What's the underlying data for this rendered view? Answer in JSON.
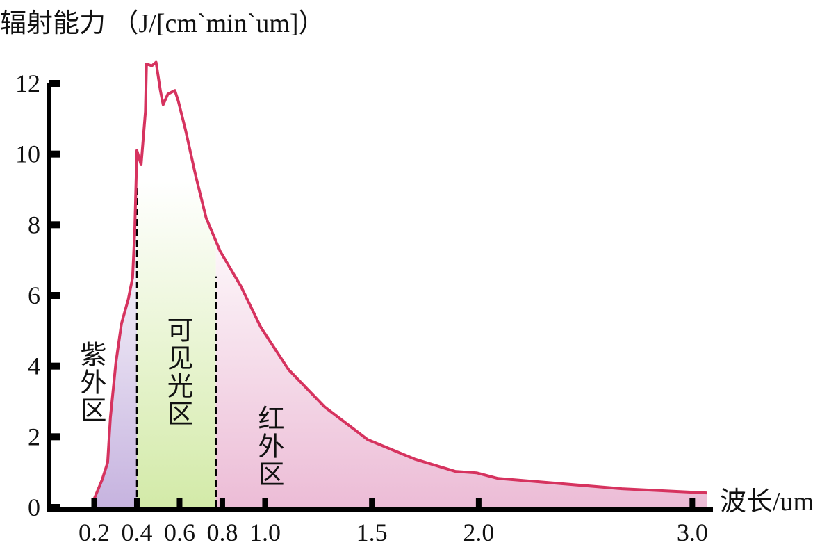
{
  "chart_data": {
    "type": "line",
    "title": "辐射能力 （J/[cm`min`um]）",
    "x_label": "波长/um",
    "x": [
      0.2,
      0.237,
      0.263,
      0.276,
      0.302,
      0.328,
      0.36,
      0.38,
      0.39,
      0.4,
      0.42,
      0.44,
      0.445,
      0.47,
      0.49,
      0.51,
      0.523,
      0.545,
      0.578,
      0.594,
      0.627,
      0.675,
      0.724,
      0.79,
      0.886,
      0.98,
      1.11,
      1.28,
      1.48,
      1.7,
      1.89,
      1.99,
      2.09,
      2.35,
      2.67,
      3.0,
      3.07
    ],
    "values": [
      0.24,
      0.78,
      1.27,
      2.55,
      4.1,
      5.2,
      5.9,
      6.5,
      7.8,
      10.1,
      9.7,
      11.2,
      12.55,
      12.5,
      12.6,
      11.8,
      11.4,
      11.7,
      11.8,
      11.5,
      10.7,
      9.4,
      8.2,
      7.25,
      6.27,
      5.1,
      3.9,
      2.84,
      1.92,
      1.37,
      1.02,
      0.98,
      0.82,
      0.69,
      0.53,
      0.43,
      0.41
    ],
    "color": "#d6335f",
    "regions": [
      {
        "label": "紫外区",
        "range": [
          0.2,
          0.4
        ],
        "color": "#c6b3df"
      },
      {
        "label": "可见光区",
        "range": [
          0.4,
          0.77
        ],
        "color": "#d3eaa8"
      },
      {
        "label": "红外区",
        "range": [
          0.77,
          3.07
        ],
        "color": "#ecbcd6"
      }
    ],
    "xlim": [
      0,
      3.09
    ],
    "ylim": [
      0,
      12
    ],
    "xticks": [
      0.2,
      0.4,
      0.6,
      0.8,
      {
        "value": 1,
        "label": "1.0"
      },
      1.5,
      {
        "value": 2,
        "label": "2.0"
      },
      {
        "value": 3,
        "label": "3.0"
      }
    ],
    "yticks": [
      0,
      2,
      4,
      6,
      8,
      10,
      12
    ]
  }
}
